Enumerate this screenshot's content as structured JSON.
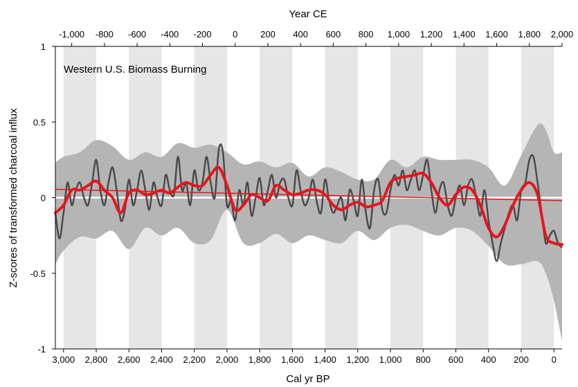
{
  "chart_data": {
    "type": "line",
    "title": "",
    "annotation": "Western U.S. Biomass Burning",
    "xlabel_bottom": "Cal yr BP",
    "xlabel_top": "Year CE",
    "ylabel": "Z-scores of transformed charcoal influx",
    "xlim_bp": [
      3050,
      -50
    ],
    "ylim": [
      -1,
      1
    ],
    "x_ticks_bp": [
      3000,
      2800,
      2600,
      2400,
      2200,
      2000,
      1800,
      1600,
      1400,
      1200,
      1000,
      800,
      600,
      400,
      200,
      0
    ],
    "x_tick_labels_bp": [
      "3,000",
      "2,800",
      "2,600",
      "2,400",
      "2,200",
      "2,000",
      "1,800",
      "1,600",
      "1,400",
      "1,200",
      "1,000",
      "800",
      "600",
      "400",
      "200",
      "0"
    ],
    "x_ticks_ce": [
      -1000,
      -800,
      -600,
      -400,
      -200,
      0,
      200,
      400,
      600,
      800,
      1000,
      1200,
      1400,
      1600,
      1800,
      2000
    ],
    "x_tick_labels_ce": [
      "-1,000",
      "-800",
      "-600",
      "-400",
      "-200",
      "0",
      "200",
      "400",
      "600",
      "800",
      "1,000",
      "1,200",
      "1,400",
      "1,600",
      "1,800",
      "2,000"
    ],
    "y_ticks": [
      1,
      0.5,
      0,
      -0.5,
      -1
    ],
    "y_tick_labels": [
      "1",
      "0.5",
      "0",
      "-0.5",
      "-1"
    ],
    "shaded_bands_ce": [
      [
        -1050,
        -850
      ],
      [
        -650,
        -450
      ],
      [
        -250,
        -50
      ],
      [
        150,
        350
      ],
      [
        550,
        750
      ],
      [
        950,
        1150
      ],
      [
        1350,
        1550
      ],
      [
        1750,
        1950
      ]
    ],
    "zero_line": 0,
    "colors": {
      "confidence_band": "#b5b5b5",
      "alternating_bands": "#e6e6e6",
      "detailed_series": "#4a4a4a",
      "smoothed_series": "#e8141b",
      "trend_line": "#e8141b",
      "zero_line": "#ffffff"
    },
    "confidence_band": {
      "x_bp": [
        3050,
        3000,
        2900,
        2800,
        2700,
        2600,
        2500,
        2400,
        2300,
        2200,
        2100,
        2000,
        1900,
        1800,
        1700,
        1600,
        1500,
        1400,
        1300,
        1200,
        1100,
        1000,
        900,
        800,
        700,
        600,
        500,
        400,
        300,
        200,
        100,
        50,
        0,
        -50
      ],
      "upper": [
        0.23,
        0.27,
        0.3,
        0.38,
        0.34,
        0.25,
        0.3,
        0.27,
        0.36,
        0.33,
        0.35,
        0.3,
        0.22,
        0.24,
        0.2,
        0.23,
        0.14,
        0.2,
        0.17,
        0.12,
        0.12,
        0.25,
        0.2,
        0.27,
        0.25,
        0.25,
        0.25,
        0.2,
        0.08,
        0.28,
        0.48,
        0.45,
        0.3,
        0.3
      ],
      "lower": [
        -0.44,
        -0.35,
        -0.26,
        -0.27,
        -0.22,
        -0.34,
        -0.2,
        -0.25,
        -0.2,
        -0.3,
        -0.28,
        -0.08,
        -0.3,
        -0.3,
        -0.24,
        -0.3,
        -0.25,
        -0.28,
        -0.3,
        -0.22,
        -0.28,
        -0.2,
        -0.18,
        -0.22,
        -0.25,
        -0.2,
        -0.22,
        -0.32,
        -0.44,
        -0.44,
        -0.42,
        -0.5,
        -0.68,
        -0.95
      ]
    },
    "series": [
      {
        "x_bp": [
          3050,
          3025,
          3000,
          2975,
          2950,
          2925,
          2900,
          2875,
          2850,
          2825,
          2800,
          2775,
          2750,
          2725,
          2700,
          2675,
          2650,
          2625,
          2600,
          2575,
          2550,
          2525,
          2500,
          2475,
          2450,
          2425,
          2400,
          2375,
          2350,
          2325,
          2300,
          2275,
          2250,
          2225,
          2200,
          2175,
          2150,
          2125,
          2100,
          2075,
          2050,
          2025,
          2000,
          1975,
          1950,
          1925,
          1900,
          1875,
          1850,
          1825,
          1800,
          1775,
          1750,
          1725,
          1700,
          1675,
          1650,
          1625,
          1600,
          1575,
          1550,
          1525,
          1500,
          1475,
          1450,
          1425,
          1400,
          1375,
          1350,
          1325,
          1300,
          1275,
          1250,
          1225,
          1200,
          1175,
          1150,
          1125,
          1100,
          1075,
          1050,
          1025,
          1000,
          975,
          950,
          925,
          900,
          875,
          850,
          825,
          800,
          775,
          750,
          725,
          700,
          675,
          650,
          625,
          600,
          575,
          550,
          525,
          500,
          475,
          450,
          425,
          400,
          375,
          350,
          325,
          300,
          275,
          250,
          225,
          200,
          175,
          150,
          125,
          100,
          75,
          50,
          25,
          0,
          -25,
          -50
        ],
        "y": [
          -0.1,
          -0.27,
          -0.1,
          0.1,
          -0.05,
          0.05,
          0.1,
          0.0,
          -0.05,
          0.1,
          0.25,
          0.05,
          -0.05,
          0.1,
          0.2,
          0.05,
          -0.15,
          -0.08,
          0.12,
          -0.05,
          0.05,
          0.18,
          0.05,
          -0.08,
          0.1,
          0.0,
          -0.05,
          0.15,
          0.05,
          0.02,
          0.27,
          0.05,
          0.1,
          -0.05,
          0.18,
          0.05,
          0.1,
          0.27,
          0.1,
          0.0,
          0.32,
          0.3,
          -0.05,
          -0.02,
          -0.15,
          0.05,
          -0.05,
          0.1,
          -0.12,
          0.0,
          0.13,
          -0.05,
          0.05,
          0.15,
          0.0,
          0.1,
          0.12,
          0.0,
          -0.05,
          0.18,
          0.05,
          -0.05,
          0.0,
          0.12,
          -0.03,
          -0.1,
          0.12,
          -0.02,
          -0.1,
          -0.05,
          0.0,
          -0.15,
          0.05,
          -0.02,
          -0.12,
          0.12,
          -0.1,
          -0.2,
          0.05,
          0.12,
          -0.08,
          -0.1,
          0.05,
          0.15,
          0.08,
          0.18,
          0.05,
          0.12,
          0.18,
          0.05,
          0.15,
          0.25,
          0.05,
          -0.1,
          0.05,
          0.1,
          -0.05,
          -0.12,
          0.0,
          0.08,
          -0.05,
          0.08,
          0.12,
          0.0,
          -0.12,
          0.05,
          -0.15,
          -0.3,
          -0.42,
          -0.3,
          -0.2,
          -0.1,
          -0.05,
          -0.15,
          0.05,
          0.1,
          0.25,
          0.27,
          0.1,
          -0.1,
          -0.3,
          -0.25,
          -0.22,
          -0.3,
          -0.33
        ]
      },
      {
        "x_bp": [
          3050,
          3000,
          2950,
          2900,
          2850,
          2800,
          2750,
          2700,
          2650,
          2600,
          2550,
          2500,
          2450,
          2400,
          2350,
          2300,
          2250,
          2200,
          2150,
          2100,
          2050,
          2000,
          1950,
          1900,
          1850,
          1800,
          1750,
          1700,
          1650,
          1600,
          1550,
          1500,
          1450,
          1400,
          1350,
          1300,
          1250,
          1200,
          1150,
          1100,
          1050,
          1000,
          950,
          900,
          850,
          800,
          750,
          700,
          650,
          600,
          550,
          500,
          450,
          400,
          350,
          300,
          250,
          200,
          150,
          100,
          50,
          0,
          -50
        ],
        "y": [
          -0.1,
          -0.05,
          0.05,
          0.05,
          0.08,
          0.11,
          0.05,
          0.0,
          -0.1,
          0.03,
          0.05,
          0.02,
          0.03,
          0.05,
          0.03,
          0.07,
          0.1,
          0.08,
          0.08,
          0.15,
          0.2,
          0.08,
          -0.08,
          -0.05,
          0.02,
          0.0,
          -0.02,
          0.08,
          0.05,
          0.02,
          0.03,
          0.05,
          0.05,
          0.02,
          -0.05,
          -0.08,
          -0.05,
          -0.03,
          -0.06,
          -0.05,
          -0.02,
          0.1,
          0.13,
          0.14,
          0.15,
          0.16,
          0.1,
          0.0,
          -0.05,
          0.02,
          0.07,
          0.05,
          -0.05,
          -0.2,
          -0.26,
          -0.18,
          -0.05,
          0.05,
          0.1,
          0.02,
          -0.25,
          -0.3,
          -0.31
        ]
      }
    ],
    "trend_line": {
      "x_bp": [
        3050,
        -50
      ],
      "y": [
        0.055,
        -0.02
      ]
    }
  }
}
